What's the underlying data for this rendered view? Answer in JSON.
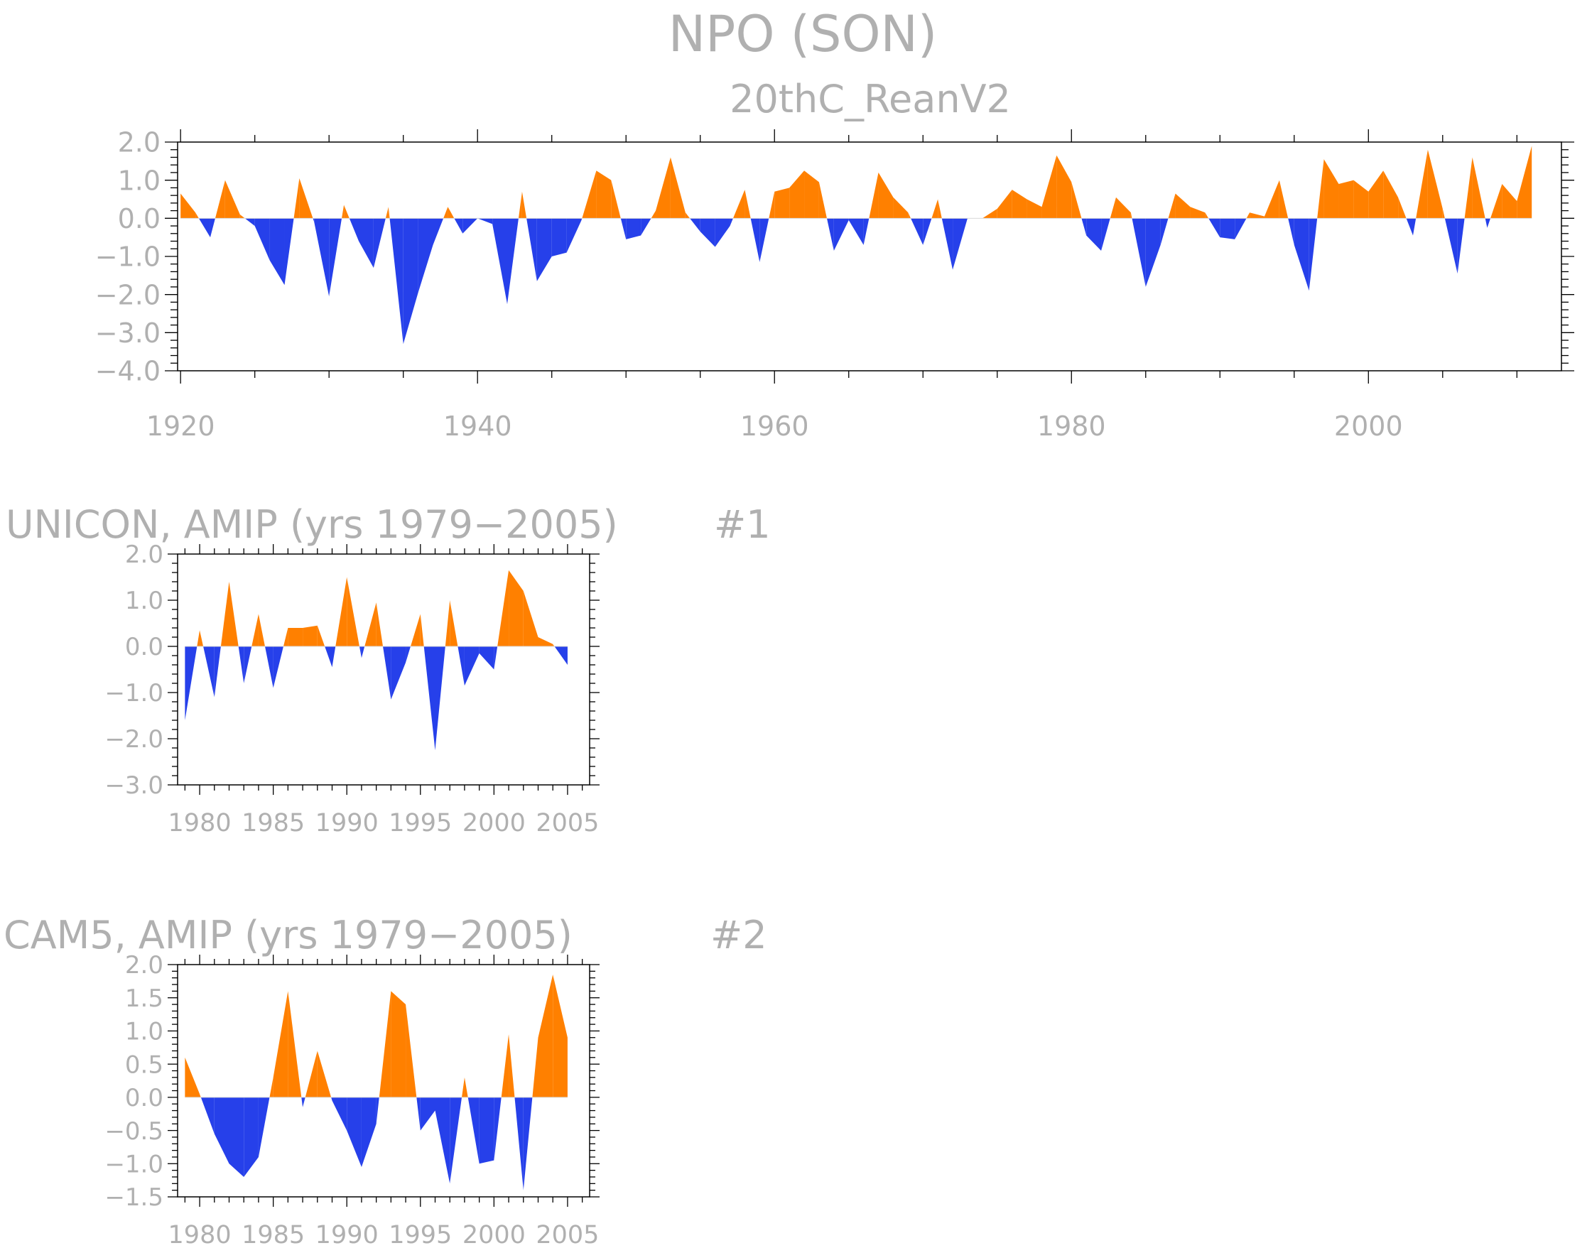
{
  "figure": {
    "title": "NPO (SON)",
    "subtitle": "20thC_ReanV2",
    "colors": {
      "positive": "#ff8000",
      "negative": "#2640ea",
      "text": "#b0b0b0",
      "frame": "#000000"
    }
  },
  "chart_data": [
    {
      "type": "area",
      "title": "20thC_ReanV2",
      "x": [
        1920,
        1921,
        1922,
        1923,
        1924,
        1925,
        1926,
        1927,
        1928,
        1929,
        1930,
        1931,
        1932,
        1933,
        1934,
        1935,
        1936,
        1937,
        1938,
        1939,
        1940,
        1941,
        1942,
        1943,
        1944,
        1945,
        1946,
        1947,
        1948,
        1949,
        1950,
        1951,
        1952,
        1953,
        1954,
        1955,
        1956,
        1957,
        1958,
        1959,
        1960,
        1961,
        1962,
        1963,
        1964,
        1965,
        1966,
        1967,
        1968,
        1969,
        1970,
        1971,
        1972,
        1973,
        1974,
        1975,
        1976,
        1977,
        1978,
        1979,
        1980,
        1981,
        1982,
        1983,
        1984,
        1985,
        1986,
        1987,
        1988,
        1989,
        1990,
        1991,
        1992,
        1993,
        1994,
        1995,
        1996,
        1997,
        1998,
        1999,
        2000,
        2001,
        2002,
        2003,
        2004,
        2005,
        2006,
        2007,
        2008,
        2009,
        2010,
        2011
      ],
      "values": [
        0.65,
        0.15,
        -0.5,
        1.0,
        0.1,
        -0.2,
        -1.1,
        -1.75,
        1.05,
        -0.1,
        -2.05,
        0.35,
        -0.6,
        -1.3,
        0.3,
        -3.3,
        -1.95,
        -0.7,
        0.3,
        -0.4,
        0.0,
        -0.15,
        -2.25,
        0.7,
        -1.65,
        -1.0,
        -0.9,
        -0.05,
        1.25,
        1.0,
        -0.55,
        -0.45,
        0.2,
        1.6,
        0.15,
        -0.35,
        -0.75,
        -0.2,
        0.75,
        -1.15,
        0.7,
        0.8,
        1.25,
        0.95,
        -0.85,
        -0.05,
        -0.7,
        1.2,
        0.55,
        0.15,
        -0.7,
        0.5,
        -1.35,
        0.0,
        0.0,
        0.25,
        0.75,
        0.5,
        0.3,
        1.65,
        0.95,
        -0.45,
        -0.85,
        0.55,
        0.15,
        -1.8,
        -0.7,
        0.65,
        0.3,
        0.15,
        -0.5,
        -0.55,
        0.15,
        0.05,
        1.0,
        -0.7,
        -1.9,
        1.55,
        0.9,
        1.0,
        0.7,
        1.25,
        0.55,
        -0.45,
        1.8,
        0.25,
        -1.45,
        1.6,
        -0.25,
        0.9,
        0.45,
        1.9
      ],
      "xlim": [
        1919.8,
        2013
      ],
      "ylim": [
        -4.0,
        2.0
      ],
      "xticks": [
        1920,
        1940,
        1960,
        1980,
        2000
      ],
      "xtick_labels": [
        "1920",
        "1940",
        "1960",
        "1980",
        "2000"
      ],
      "yticks": [
        2.0,
        1.0,
        0.0,
        -1.0,
        -2.0,
        -3.0,
        -4.0
      ],
      "ytick_labels": [
        "2.0",
        "1.0",
        "0.0",
        "−1.0",
        "−2.0",
        "−3.0",
        "−4.0"
      ]
    },
    {
      "type": "area",
      "title": "UNICON, AMIP (yrs 1979−2005)",
      "panel_label": "#1",
      "x": [
        1979,
        1980,
        1981,
        1982,
        1983,
        1984,
        1985,
        1986,
        1987,
        1988,
        1989,
        1990,
        1991,
        1992,
        1993,
        1994,
        1995,
        1996,
        1997,
        1998,
        1999,
        2000,
        2001,
        2002,
        2003,
        2004,
        2005
      ],
      "values": [
        -1.6,
        0.35,
        -1.1,
        1.4,
        -0.8,
        0.7,
        -0.9,
        0.4,
        0.4,
        0.45,
        -0.45,
        1.5,
        -0.25,
        0.95,
        -1.15,
        -0.35,
        0.7,
        -2.25,
        1.0,
        -0.85,
        -0.15,
        -0.5,
        1.65,
        1.2,
        0.2,
        0.05,
        -0.4
      ],
      "xlim": [
        1978.5,
        2006.5
      ],
      "ylim": [
        -3.0,
        2.0
      ],
      "xticks": [
        1980,
        1985,
        1990,
        1995,
        2000,
        2005
      ],
      "xtick_labels": [
        "1980",
        "1985",
        "1990",
        "1995",
        "2000",
        "2005"
      ],
      "yticks": [
        2.0,
        1.0,
        0.0,
        -1.0,
        -2.0,
        -3.0
      ],
      "ytick_labels": [
        "2.0",
        "1.0",
        "0.0",
        "−1.0",
        "−2.0",
        "−3.0"
      ]
    },
    {
      "type": "area",
      "title": "CAM5, AMIP (yrs 1979−2005)",
      "panel_label": "#2",
      "x": [
        1979,
        1980,
        1981,
        1982,
        1983,
        1984,
        1985,
        1986,
        1987,
        1988,
        1989,
        1990,
        1991,
        1992,
        1993,
        1994,
        1995,
        1996,
        1997,
        1998,
        1999,
        2000,
        2001,
        2002,
        2003,
        2004,
        2005
      ],
      "values": [
        0.6,
        0.05,
        -0.55,
        -1.0,
        -1.2,
        -0.9,
        0.3,
        1.6,
        -0.15,
        0.7,
        -0.05,
        -0.5,
        -1.05,
        -0.4,
        1.6,
        1.4,
        -0.5,
        -0.2,
        -1.3,
        0.3,
        -1.0,
        -0.95,
        0.95,
        -1.4,
        0.9,
        1.85,
        0.9
      ],
      "xlim": [
        1978.5,
        2006.5
      ],
      "ylim": [
        -1.5,
        2.0
      ],
      "xticks": [
        1980,
        1985,
        1990,
        1995,
        2000,
        2005
      ],
      "xtick_labels": [
        "1980",
        "1985",
        "1990",
        "1995",
        "2000",
        "2005"
      ],
      "yticks": [
        2.0,
        1.5,
        1.0,
        0.5,
        0.0,
        -0.5,
        -1.0,
        -1.5
      ],
      "ytick_labels": [
        "2.0",
        "1.5",
        "1.0",
        "0.5",
        "0.0",
        "−0.5",
        "−1.0",
        "−1.5"
      ]
    }
  ]
}
